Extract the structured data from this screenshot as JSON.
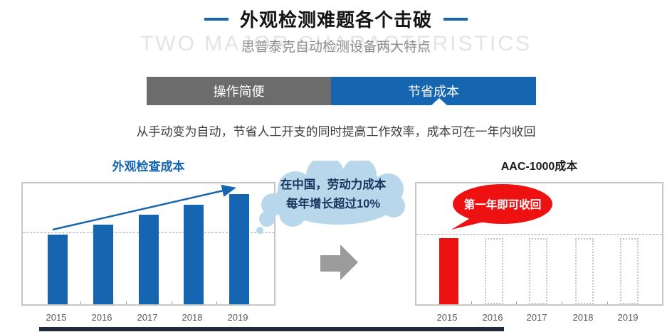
{
  "header": {
    "title": "外观检测难题各个击破",
    "watermark": "TWO MAJOR CHARACTERISTICS",
    "subtitle": "思普泰克自动检测设备两大特点"
  },
  "tabs": [
    {
      "label": "操作简便",
      "active": false
    },
    {
      "label": "节省成本",
      "active": true
    }
  ],
  "description": "从手动变为自动，节省人工开支的同时提高工作效率，成本可在一年内收回",
  "cloud_callout": {
    "line1": "在中国，劳动力成本",
    "line2": "每年增长超过10%"
  },
  "red_callout": {
    "text": "第一年即可收回"
  },
  "chart_data": [
    {
      "type": "bar",
      "title": "外观检查成本",
      "categories": [
        "2015",
        "2016",
        "2017",
        "2018",
        "2019"
      ],
      "values": [
        63,
        72,
        81,
        90,
        100
      ],
      "xlabel": "",
      "ylabel": "",
      "ylim": [
        0,
        110
      ],
      "grid": false,
      "bar_color": "#1565b0",
      "annotations": [
        "dashed horizontal reference line at 2015 cost level",
        "blue upward trend arrow from 2015 bar top to 2019 bar top"
      ]
    },
    {
      "type": "bar",
      "title": "AAC-1000成本",
      "categories": [
        "2015",
        "2016",
        "2017",
        "2018",
        "2019"
      ],
      "series": [
        {
          "name": "first-year cost (solid)",
          "values": [
            60,
            0,
            0,
            0,
            0
          ],
          "color": "#ee1111"
        },
        {
          "name": "avoided cost (dotted outline placeholder)",
          "values": [
            0,
            60,
            60,
            60,
            60
          ],
          "style": "dotted-outline"
        }
      ],
      "xlabel": "",
      "ylabel": "",
      "ylim": [
        0,
        110
      ],
      "grid": false,
      "annotations": [
        "dashed horizontal reference line just above bar tops",
        "red speech bubble pointing at 2015 bar: 第一年即可收回"
      ]
    }
  ],
  "colors": {
    "accent_blue": "#1565b0",
    "inactive_tab_gray": "#6c6c6c",
    "highlight_red": "#ee1111",
    "cloud_fill": "#b9d7ea",
    "cloud_text": "#17375e",
    "watermark_gray": "#e4e4e4",
    "transition_arrow_gray": "#9b9b9b",
    "scrollbar_dark": "#1f2b38"
  }
}
